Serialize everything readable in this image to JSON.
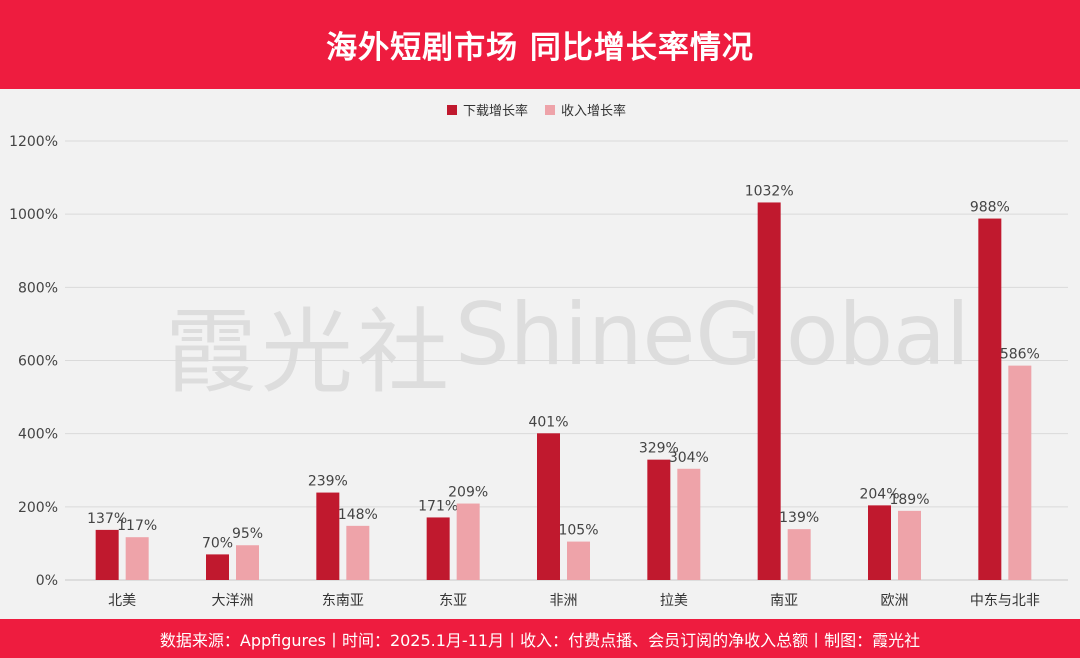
{
  "header": {
    "title": "海外短剧市场 同比增长率情况"
  },
  "footer": {
    "source": "数据来源：Appfigures丨时间：2025.1月-11月丨收入：付费点播、会员订阅的净收入总额丨制图：霞光社"
  },
  "watermark": {
    "cn": "霞光社",
    "en": "ShineGlobal"
  },
  "colors": {
    "header_bg": "#ee1c3f",
    "download": "#c0192e",
    "revenue": "#eea3a9"
  },
  "chart_data": {
    "type": "bar",
    "categories": [
      "北美",
      "大洋洲",
      "东南亚",
      "东亚",
      "非洲",
      "拉美",
      "南亚",
      "欧洲",
      "中东与北非"
    ],
    "series": [
      {
        "name": "下载增长率",
        "values": [
          137,
          70,
          239,
          171,
          401,
          329,
          1032,
          204,
          988
        ],
        "labels": [
          "137%",
          "70%",
          "239%",
          "171%",
          "401%",
          "329%",
          "1032%",
          "204%",
          "988%"
        ]
      },
      {
        "name": "收入增长率",
        "values": [
          117,
          95,
          148,
          209,
          105,
          304,
          139,
          189,
          586
        ],
        "labels": [
          "117%",
          "95%",
          "148%",
          "209%",
          "105%",
          "304%",
          "139%",
          "189%",
          "586%"
        ]
      }
    ],
    "yticks": [
      "0%",
      "200%",
      "400%",
      "600%",
      "800%",
      "1000%",
      "1200%"
    ],
    "ylim": [
      0,
      1200
    ],
    "grid": true,
    "legend": "top-center"
  }
}
